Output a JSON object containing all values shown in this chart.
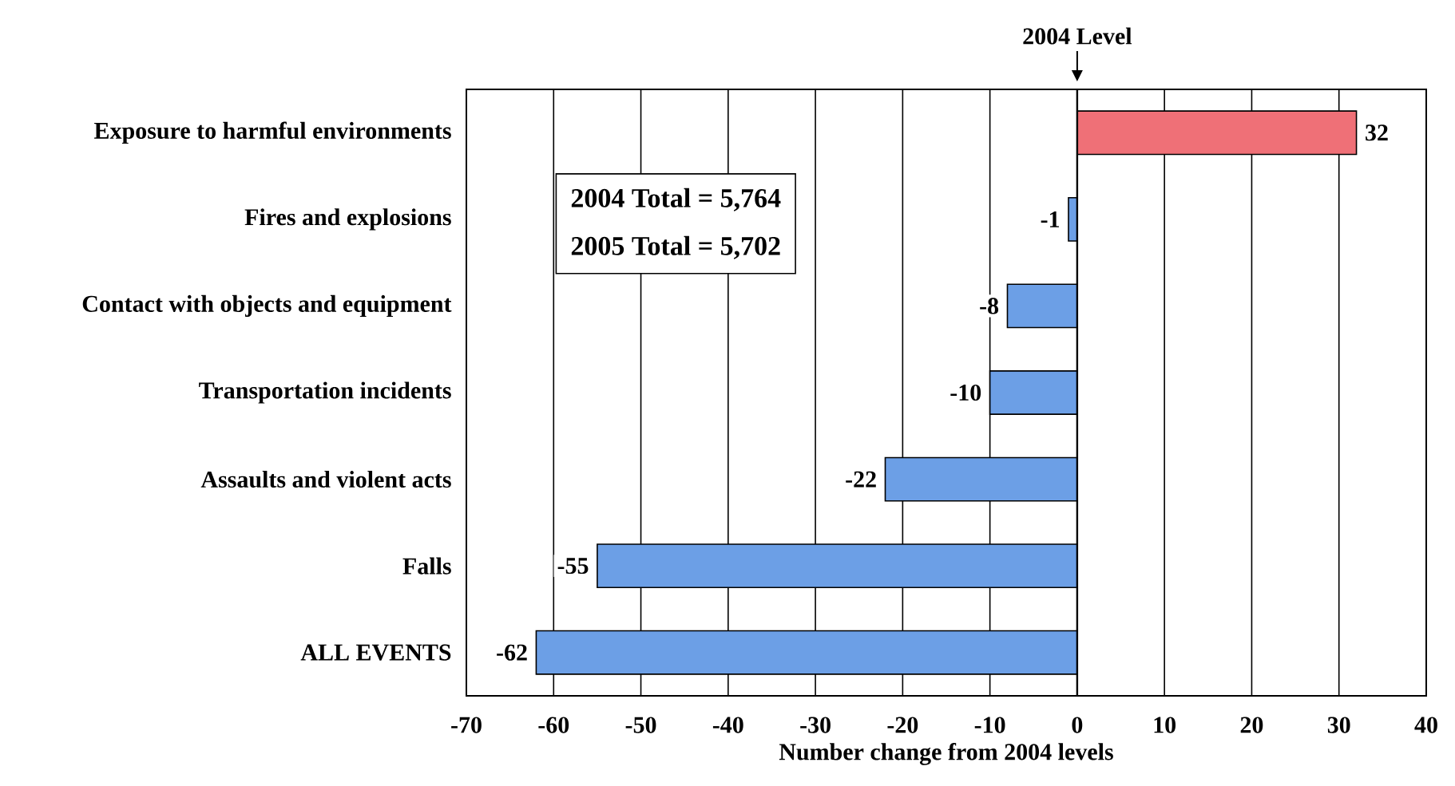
{
  "chart_data": {
    "type": "bar",
    "orientation": "horizontal",
    "xlabel": "Number change from 2004 levels",
    "categories": [
      "Exposure to harmful environments",
      "Fires and explosions",
      "Contact with objects and equipment",
      "Transportation incidents",
      "Assaults and violent acts",
      "Falls",
      "ALL EVENTS"
    ],
    "values": [
      32,
      -1,
      -8,
      -10,
      -22,
      -55,
      -62
    ],
    "value_labels": [
      "32",
      "-1",
      "-8",
      "-10",
      "-22",
      "-55",
      "-62"
    ],
    "colors": [
      "#ef7077",
      "#6c9fe6",
      "#6c9fe6",
      "#6c9fe6",
      "#6c9fe6",
      "#6c9fe6",
      "#6c9fe6"
    ],
    "xlim": [
      -70,
      40
    ],
    "xticks": [
      -70,
      -60,
      -50,
      -40,
      -30,
      -20,
      -10,
      0,
      10,
      20,
      30,
      40
    ],
    "grid": "x",
    "ref_lines": [
      {
        "axis": "x",
        "value": 0,
        "label": "2004 Level"
      }
    ],
    "annotations": [
      "2004 Total = 5,764",
      "2005 Total = 5,702"
    ]
  }
}
